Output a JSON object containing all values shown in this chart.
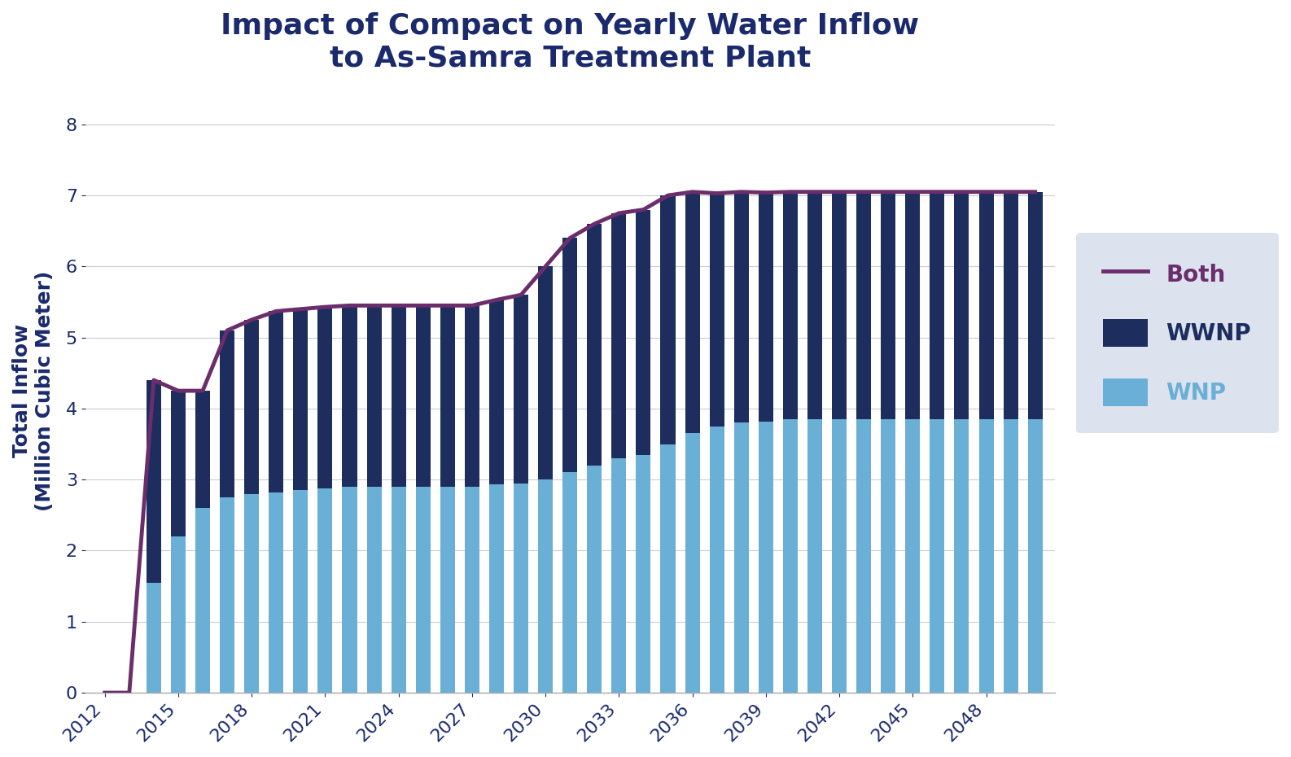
{
  "title": "Impact of Compact on Yearly Water Inflow\nto As-Samra Treatment Plant",
  "ylabel": "Total Inflow\n(Million Cubic Meter)",
  "background_color": "#ffffff",
  "title_color": "#1a2a6c",
  "ylabel_color": "#1a2a6c",
  "legend_bg": "#dde3ee",
  "years": [
    2012,
    2013,
    2014,
    2015,
    2016,
    2017,
    2018,
    2019,
    2020,
    2021,
    2022,
    2023,
    2024,
    2025,
    2026,
    2027,
    2028,
    2029,
    2030,
    2031,
    2032,
    2033,
    2034,
    2035,
    2036,
    2037,
    2038,
    2039,
    2040,
    2041,
    2042,
    2043,
    2044,
    2045,
    2046,
    2047,
    2048,
    2049,
    2050
  ],
  "wnp": [
    0,
    0,
    1.55,
    2.2,
    2.6,
    2.75,
    2.8,
    2.82,
    2.85,
    2.88,
    2.9,
    2.9,
    2.9,
    2.9,
    2.9,
    2.9,
    2.93,
    2.95,
    3.0,
    3.1,
    3.2,
    3.3,
    3.35,
    3.5,
    3.65,
    3.75,
    3.8,
    3.82,
    3.85,
    3.85,
    3.85,
    3.85,
    3.85,
    3.85,
    3.85,
    3.85,
    3.85,
    3.85,
    3.85
  ],
  "wwnp": [
    0,
    0,
    2.85,
    2.05,
    1.65,
    2.35,
    2.45,
    2.55,
    2.55,
    2.55,
    2.55,
    2.55,
    2.55,
    2.55,
    2.55,
    2.55,
    2.6,
    2.65,
    3.0,
    3.3,
    3.4,
    3.45,
    3.45,
    3.5,
    3.4,
    3.28,
    3.25,
    3.22,
    3.2,
    3.2,
    3.2,
    3.2,
    3.2,
    3.2,
    3.2,
    3.2,
    3.2,
    3.2,
    3.2
  ],
  "both_line": [
    0,
    0,
    4.4,
    4.25,
    4.25,
    5.1,
    5.25,
    5.37,
    5.4,
    5.43,
    5.45,
    5.45,
    5.45,
    5.45,
    5.45,
    5.45,
    5.53,
    5.6,
    6.0,
    6.4,
    6.6,
    6.75,
    6.8,
    7.0,
    7.05,
    7.03,
    7.05,
    7.04,
    7.05,
    7.05,
    7.05,
    7.05,
    7.05,
    7.05,
    7.05,
    7.05,
    7.05,
    7.05,
    7.05
  ],
  "wnp_color": "#6aafd6",
  "wwnp_color": "#1c2d5e",
  "both_color": "#6b2d6b",
  "ylim": [
    0,
    8.5
  ],
  "yticks": [
    0,
    1,
    2,
    3,
    4,
    5,
    6,
    7,
    8
  ],
  "xticks": [
    2012,
    2015,
    2018,
    2021,
    2024,
    2027,
    2030,
    2033,
    2036,
    2039,
    2042,
    2045,
    2048
  ],
  "grid_color": "#cccccc",
  "title_fontsize": 26,
  "label_fontsize": 18,
  "tick_fontsize": 16,
  "legend_fontsize": 20,
  "bar_width": 0.6
}
